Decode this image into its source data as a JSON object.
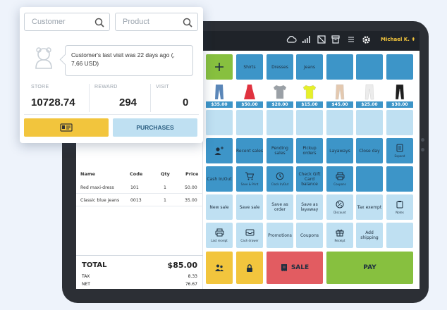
{
  "topbar": {
    "user_name": "Michael K. ⬍",
    "icons": [
      "cloud-icon",
      "signal-icon",
      "no-receipt-icon",
      "archive-icon",
      "menu-icon",
      "settings-icon"
    ]
  },
  "customer_popup": {
    "customer_placeholder": "Customer",
    "product_placeholder": "Product",
    "tooltip": "Customer's last visit was 22 days ago (, 7,66 USD)",
    "stats": [
      {
        "label": "STORE",
        "value": "10728.74"
      },
      {
        "label": "REWARD",
        "value": "294"
      },
      {
        "label": "VISIT",
        "value": "0"
      }
    ],
    "purchases_label": "PURCHASES"
  },
  "order": {
    "headers": [
      "Name",
      "Code",
      "Qty",
      "Price"
    ],
    "rows": [
      {
        "name": "Red maxi-dress",
        "code": "101",
        "qty": "1",
        "price": "50.00"
      },
      {
        "name": "Classic blue jeans",
        "code": "0013",
        "qty": "1",
        "price": "35.00"
      }
    ],
    "total_label": "TOTAL",
    "total_value": "$85.00",
    "tax_label": "TAX",
    "tax_value": "8.33",
    "net_label": "NET",
    "net_value": "76.67"
  },
  "categories": [
    "Shirts",
    "Dresses",
    "Jeans"
  ],
  "products": [
    {
      "price": "$35.00",
      "item": "jeans",
      "color": "#5a86b8"
    },
    {
      "price": "$50.00",
      "item": "dress",
      "color": "#e0323f"
    },
    {
      "price": "$20.00",
      "item": "tshirt",
      "color": "#9aa0a6"
    },
    {
      "price": "$15.00",
      "item": "tshirt",
      "color": "#e6f02a"
    },
    {
      "price": "$45.00",
      "item": "pants",
      "color": "#e4c9b0"
    },
    {
      "price": "$25.00",
      "item": "pants",
      "color": "#ececec"
    },
    {
      "price": "$30.00",
      "item": "pants",
      "color": "#1e1e1e"
    }
  ],
  "actions_row1": [
    {
      "label": "",
      "sub": ""
    },
    {
      "label": "Recent sales",
      "sub": ""
    },
    {
      "label": "Pending sales",
      "sub": ""
    },
    {
      "label": "Pickup orders",
      "sub": ""
    },
    {
      "label": "Layaways",
      "sub": ""
    },
    {
      "label": "Close day",
      "sub": ""
    },
    {
      "label": "",
      "sub": "Expand"
    }
  ],
  "actions_row2": [
    {
      "label": "Cash In/Out",
      "sub": ""
    },
    {
      "label": "",
      "sub": "Save & Print"
    },
    {
      "label": "",
      "sub": "Clock In/Out"
    },
    {
      "label": "Check Gift Card balance",
      "sub": ""
    },
    {
      "label": "",
      "sub": "Coupons"
    }
  ],
  "actions_row3": [
    {
      "label": "New sale",
      "sub": ""
    },
    {
      "label": "Save sale",
      "sub": ""
    },
    {
      "label": "Save as order",
      "sub": ""
    },
    {
      "label": "Save as layaway",
      "sub": ""
    },
    {
      "label": "",
      "sub": "Discount"
    },
    {
      "label": "Tax exempt",
      "sub": ""
    },
    {
      "label": "",
      "sub": "Notes"
    }
  ],
  "actions_row4": [
    {
      "label": "",
      "sub": "Last receipt"
    },
    {
      "label": "",
      "sub": "Cash drawer"
    },
    {
      "label": "Promotions",
      "sub": ""
    },
    {
      "label": "Coupons",
      "sub": ""
    },
    {
      "label": "",
      "sub": "Receipt"
    },
    {
      "label": "Add shipping",
      "sub": ""
    }
  ],
  "bottom": {
    "sale_label": "SALE",
    "pay_label": "PAY"
  },
  "colors": {
    "blue": "#3d95c8",
    "light_blue": "#bfe0f2",
    "green": "#87c03f",
    "yellow": "#f2c53d",
    "red": "#e25c61"
  }
}
